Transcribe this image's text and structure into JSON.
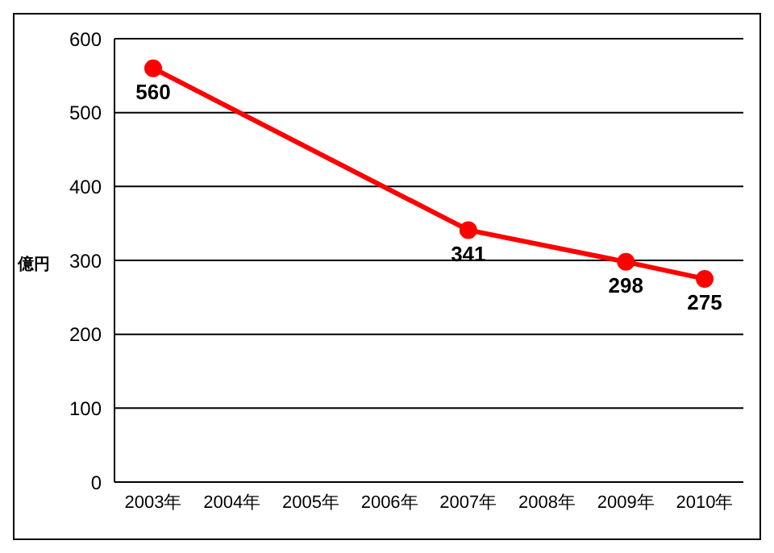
{
  "chart_data": {
    "type": "line",
    "ylabel": "億円",
    "categories": [
      "2003年",
      "2004年",
      "2005年",
      "2006年",
      "2007年",
      "2008年",
      "2009年",
      "2010年"
    ],
    "series": [
      {
        "color": "#ff0000",
        "values": [
          560,
          null,
          null,
          null,
          341,
          null,
          298,
          275
        ]
      }
    ],
    "ylim": [
      0,
      600
    ],
    "yticks": [
      0,
      100,
      200,
      300,
      400,
      500,
      600
    ],
    "grid": "y",
    "legend": false,
    "marker": "circle",
    "line_style": "solid",
    "data_labels": true
  }
}
